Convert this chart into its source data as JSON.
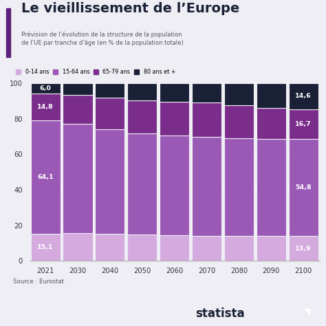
{
  "title": "Le vieillissement de l’Europe",
  "subtitle": "Prévision de l’évolution de la structure de la population\nde l’UE par tranche d’âge (en % de la population totale)",
  "source": "Source : Eurostat",
  "watermark": "statista",
  "years": [
    2021,
    2030,
    2040,
    2050,
    2060,
    2070,
    2080,
    2090,
    2100
  ],
  "categories": [
    "0-14 ans",
    "15-64 ans",
    "65-79 ans",
    "80 ans et +"
  ],
  "colors": [
    "#d4aadf",
    "#9b59b6",
    "#7b2d8b",
    "#1a2035"
  ],
  "data": {
    "0-14 ans": [
      15.1,
      15.5,
      15.2,
      14.8,
      14.5,
      14.2,
      14.0,
      13.9,
      13.9
    ],
    "15-64 ans": [
      64.1,
      61.5,
      59.0,
      57.0,
      56.0,
      55.5,
      55.0,
      54.8,
      54.8
    ],
    "65-79 ans": [
      14.8,
      16.5,
      17.8,
      18.5,
      19.0,
      19.3,
      18.5,
      17.5,
      16.7
    ],
    "80 ans et +": [
      6.0,
      6.5,
      8.0,
      9.7,
      10.5,
      11.0,
      12.5,
      13.8,
      14.6
    ]
  },
  "labels_2021": {
    "0-14 ans": "15,1",
    "15-64 ans": "64,1",
    "65-79 ans": "14,8",
    "80 ans et +": "6,0"
  },
  "labels_2100": {
    "0-14 ans": "13,9",
    "15-64 ans": "54,8",
    "65-79 ans": "16,7",
    "80 ans et +": "14,6"
  },
  "ylim": [
    0,
    100
  ],
  "yticks": [
    0,
    20,
    40,
    60,
    80,
    100
  ],
  "bg_color": "#eeeef4",
  "title_bar_color": "#5c1f7a",
  "title_color": "#1a2035",
  "subtitle_color": "#555566",
  "grid_color": "#ffffff",
  "bar_edge_color": "#eeeef4"
}
